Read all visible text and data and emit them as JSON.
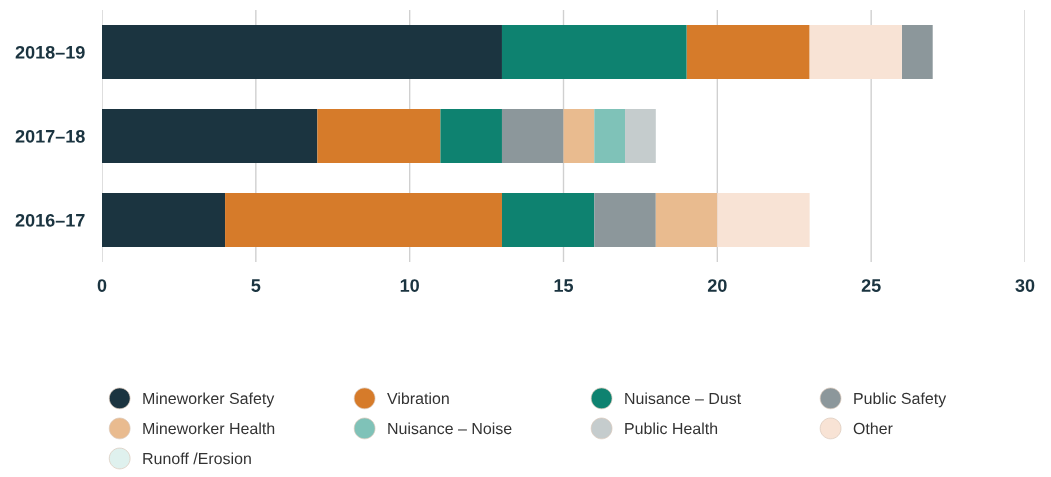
{
  "chart_data": {
    "type": "bar",
    "orientation": "horizontal",
    "categories": [
      "2018–19",
      "2017–18",
      "2016–17"
    ],
    "series": [
      {
        "name": "Mineworker Safety",
        "color": "#1b3440",
        "values": [
          13,
          7,
          4
        ],
        "base": [
          0,
          0,
          0
        ]
      },
      {
        "name": "Vibration",
        "color": "#d67b2a",
        "values": [
          4,
          4,
          9
        ],
        "base": [
          19,
          7,
          4
        ]
      },
      {
        "name": "Nuisance – Dust",
        "color": "#0e8270",
        "values": [
          6,
          2,
          3
        ],
        "base": [
          13,
          11,
          13
        ]
      },
      {
        "name": "Public Safety",
        "color": "#8c979b",
        "values": [
          1,
          2,
          2
        ],
        "base": [
          26,
          13,
          16
        ]
      },
      {
        "name": "Mineworker Health",
        "color": "#e9bb8f",
        "values": [
          null,
          1,
          2
        ],
        "base": [
          null,
          15,
          18
        ]
      },
      {
        "name": "Nuisance – Noise",
        "color": "#7fc2b8",
        "values": [
          null,
          1,
          null
        ],
        "base": [
          null,
          16,
          null
        ]
      },
      {
        "name": "Public Health",
        "color": "#c5cccd",
        "values": [
          null,
          1,
          null
        ],
        "base": [
          null,
          17,
          null
        ]
      },
      {
        "name": "Other",
        "color": "#f8e3d5",
        "values": [
          3,
          null,
          3
        ],
        "base": [
          23,
          null,
          20
        ]
      },
      {
        "name": "Runoff /Erosion",
        "color": "#dff1ee",
        "values": [
          null,
          null,
          null
        ],
        "base": [
          null,
          null,
          null
        ]
      }
    ],
    "xlim": [
      0,
      30
    ],
    "xticks": [
      0,
      5,
      10,
      15,
      20,
      25,
      30
    ],
    "grid": "x",
    "legend": "bottom"
  }
}
